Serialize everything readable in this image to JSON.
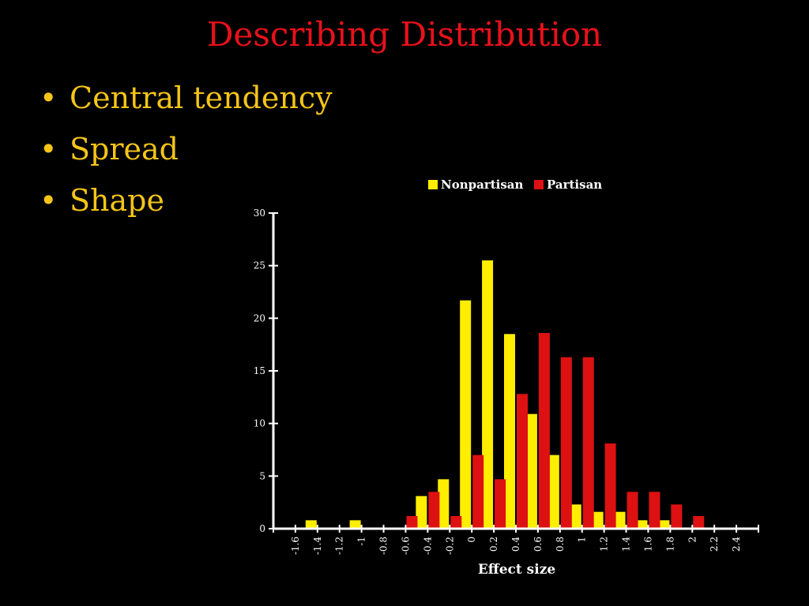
{
  "slide": {
    "title": "Describing Distribution",
    "bullets": [
      "Central tendency",
      "Spread",
      "Shape"
    ],
    "bullet_glyph": "•"
  },
  "colors": {
    "background": "#000000",
    "title": "#e8111a",
    "bullets": "#f5c518",
    "nonpartisan": "#ffee00",
    "partisan": "#dd1111",
    "axis": "#ffffff"
  },
  "chart_data": {
    "type": "bar",
    "title": "",
    "xlabel": "Effect size",
    "ylabel": "",
    "ylim": [
      0,
      30
    ],
    "yticks": [
      0,
      5,
      10,
      15,
      20,
      25,
      30
    ],
    "legend_position": "top",
    "categories": [
      "-1.6",
      "-1.4",
      "-1.2",
      "-1",
      "-0.8",
      "-0.6",
      "-0.4",
      "-0.2",
      "0",
      "0.2",
      "0.4",
      "0.6",
      "0.8",
      "1",
      "1.2",
      "1.4",
      "1.6",
      "1.8",
      "2",
      "2.2",
      "2.4"
    ],
    "series": [
      {
        "name": "Nonpartisan",
        "values": [
          0,
          0.8,
          0,
          0.8,
          0,
          0,
          3.1,
          4.7,
          21.7,
          25.5,
          18.5,
          10.9,
          7.0,
          2.3,
          1.6,
          1.6,
          0.8,
          0.8,
          0,
          0,
          0
        ]
      },
      {
        "name": "Partisan",
        "values": [
          0,
          0,
          0,
          0,
          0,
          1.2,
          3.5,
          1.2,
          7.0,
          4.7,
          12.8,
          18.6,
          16.3,
          16.3,
          8.1,
          3.5,
          3.5,
          2.3,
          1.2,
          0,
          0
        ]
      }
    ]
  }
}
